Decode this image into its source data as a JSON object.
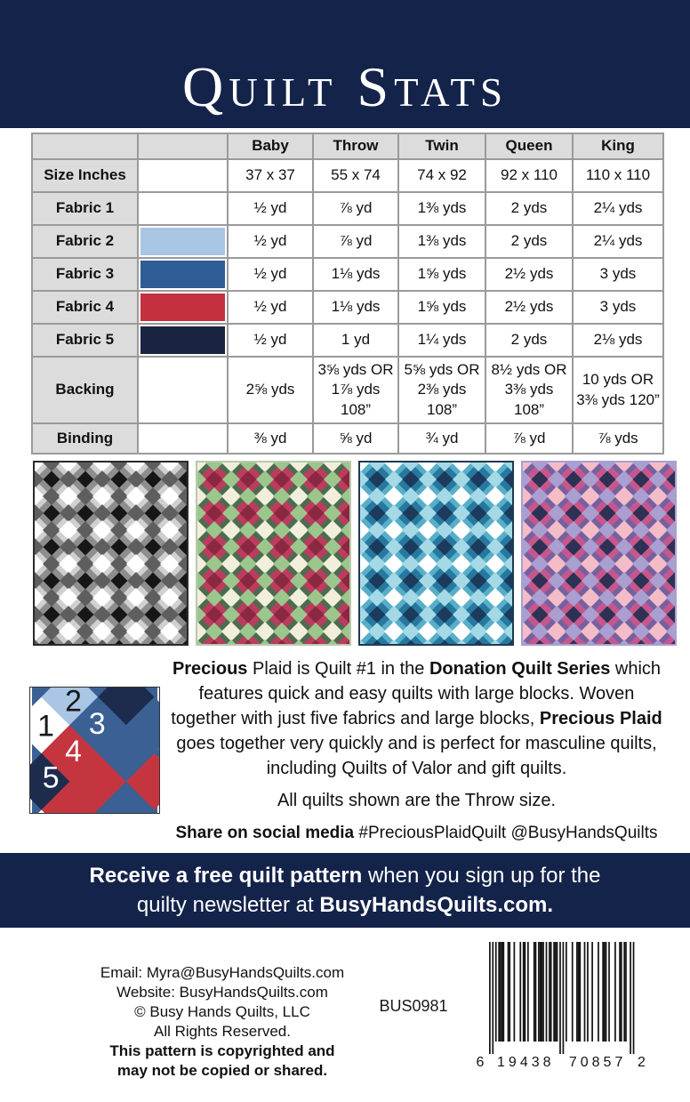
{
  "header": {
    "title": "Quilt Stats"
  },
  "table": {
    "columns": [
      "Baby",
      "Throw",
      "Twin",
      "Queen",
      "King"
    ],
    "rows": [
      {
        "label": "Size Inches",
        "swatch": null,
        "values": [
          "37 x 37",
          "55 x 74",
          "74 x 92",
          "92 x 110",
          "110 x 110"
        ]
      },
      {
        "label": "Fabric 1",
        "swatch": "#ffffff",
        "values": [
          "½ yd",
          "⅞ yd",
          "1⅜ yds",
          "2 yds",
          "2¼ yds"
        ]
      },
      {
        "label": "Fabric 2",
        "swatch": "#a9c6e4",
        "values": [
          "½ yd",
          "⅞ yd",
          "1⅜ yds",
          "2 yds",
          "2¼ yds"
        ]
      },
      {
        "label": "Fabric 3",
        "swatch": "#2e5d96",
        "values": [
          "½ yd",
          "1⅛ yds",
          "1⅝ yds",
          "2½ yds",
          "3 yds"
        ]
      },
      {
        "label": "Fabric 4",
        "swatch": "#c4303d",
        "values": [
          "½ yd",
          "1⅛ yds",
          "1⅝ yds",
          "2½ yds",
          "3 yds"
        ]
      },
      {
        "label": "Fabric 5",
        "swatch": "#1a2440",
        "values": [
          "½ yd",
          "1 yd",
          "1¼ yds",
          "2 yds",
          "2⅛ yds"
        ]
      },
      {
        "label": "Backing",
        "swatch": null,
        "values": [
          "2⅝ yds",
          "3⅝ yds OR 1⅞ yds 108”",
          "5⅝ yds OR 2⅜ yds 108”",
          "8½ yds OR 3⅜ yds 108”",
          "10 yds OR 3⅜ yds 120”"
        ]
      },
      {
        "label": "Binding",
        "swatch": null,
        "values": [
          "⅜ yd",
          "⅝ yd",
          "¾ yd",
          "⅞ yd",
          "⅞ yds"
        ]
      }
    ]
  },
  "quilts": [
    {
      "name": "gray-colorway-quilt",
      "border": "#2b2b2b",
      "big_a": "#8e8e8e",
      "big_b": "#d0d0d0",
      "small_dark": "#161616",
      "small_light": "#ffffff",
      "small_mid": "#5e5e5e"
    },
    {
      "name": "christmas-colorway-quilt",
      "border": "#b9c9ae",
      "big_a": "#bb3c5f",
      "big_b": "#4d6c4f",
      "small_dark": "#8a2840",
      "small_light": "#f2eedc",
      "small_mid": "#9bc78d"
    },
    {
      "name": "blue-colorway-quilt",
      "border": "#1d3a52",
      "big_a": "#27789e",
      "big_b": "#58aec8",
      "small_dark": "#1c3a5c",
      "small_light": "#ffffff",
      "small_mid": "#a5d9e6"
    },
    {
      "name": "pink-purple-colorway-quilt",
      "border": "#a89fd0",
      "big_a": "#c6578d",
      "big_b": "#75619f",
      "small_dark": "#2d3153",
      "small_light": "#f4bcc7",
      "small_mid": "#a99fd1"
    }
  ],
  "block": {
    "numbers": [
      "1",
      "2",
      "3",
      "4",
      "5"
    ],
    "colors": {
      "white": "#ffffff",
      "light_blue": "#a9c6e4",
      "medium_blue": "#3b6094",
      "red": "#c43540",
      "navy": "#1d2b4d"
    }
  },
  "about": {
    "paragraph": [
      {
        "t": "Precious",
        "b": true
      },
      {
        "t": " Plaid is Quilt #1 in the ",
        "b": false
      },
      {
        "t": "Donation Quilt Series",
        "b": true
      },
      {
        "t": " which features quick and easy quilts with large blocks.  Woven together with just five fabrics and large blocks, ",
        "b": false
      },
      {
        "t": "Precious Plaid",
        "b": true
      },
      {
        "t": " goes together very quickly and is perfect for masculine quilts, including Quilts of Valor and gift quilts.",
        "b": false
      }
    ],
    "throw_note": "All quilts shown are the Throw size.",
    "share": [
      {
        "t": "Share on social media",
        "b": true
      },
      {
        "t": " #PreciousPlaidQuilt @BusyHandsQuilts",
        "b": false
      }
    ]
  },
  "banner": {
    "line1": [
      {
        "t": "Receive a free quilt pattern",
        "b": true
      },
      {
        "t": " when you sign up for the",
        "b": false
      }
    ],
    "line2": [
      {
        "t": "quilty newsletter at ",
        "b": false
      },
      {
        "t": "BusyHandsQuilts.com.",
        "b": true
      }
    ]
  },
  "footer": {
    "lines": [
      {
        "t": "Email: Myra@BusyHandsQuilts.com",
        "b": false
      },
      {
        "t": "Website: BusyHandsQuilts.com",
        "b": false
      },
      {
        "t": "© Busy Hands Quilts, LLC",
        "b": false
      },
      {
        "t": "All Rights Reserved.",
        "b": false
      },
      {
        "t": "This pattern is copyrighted and",
        "b": true
      },
      {
        "t": "may not be copied or shared.",
        "b": true
      }
    ],
    "sku": "BUS0981",
    "barcode": {
      "digits": "619438708572",
      "left_digit": "6",
      "group1": "19438",
      "group2": "70857",
      "right_digit": "2"
    }
  }
}
